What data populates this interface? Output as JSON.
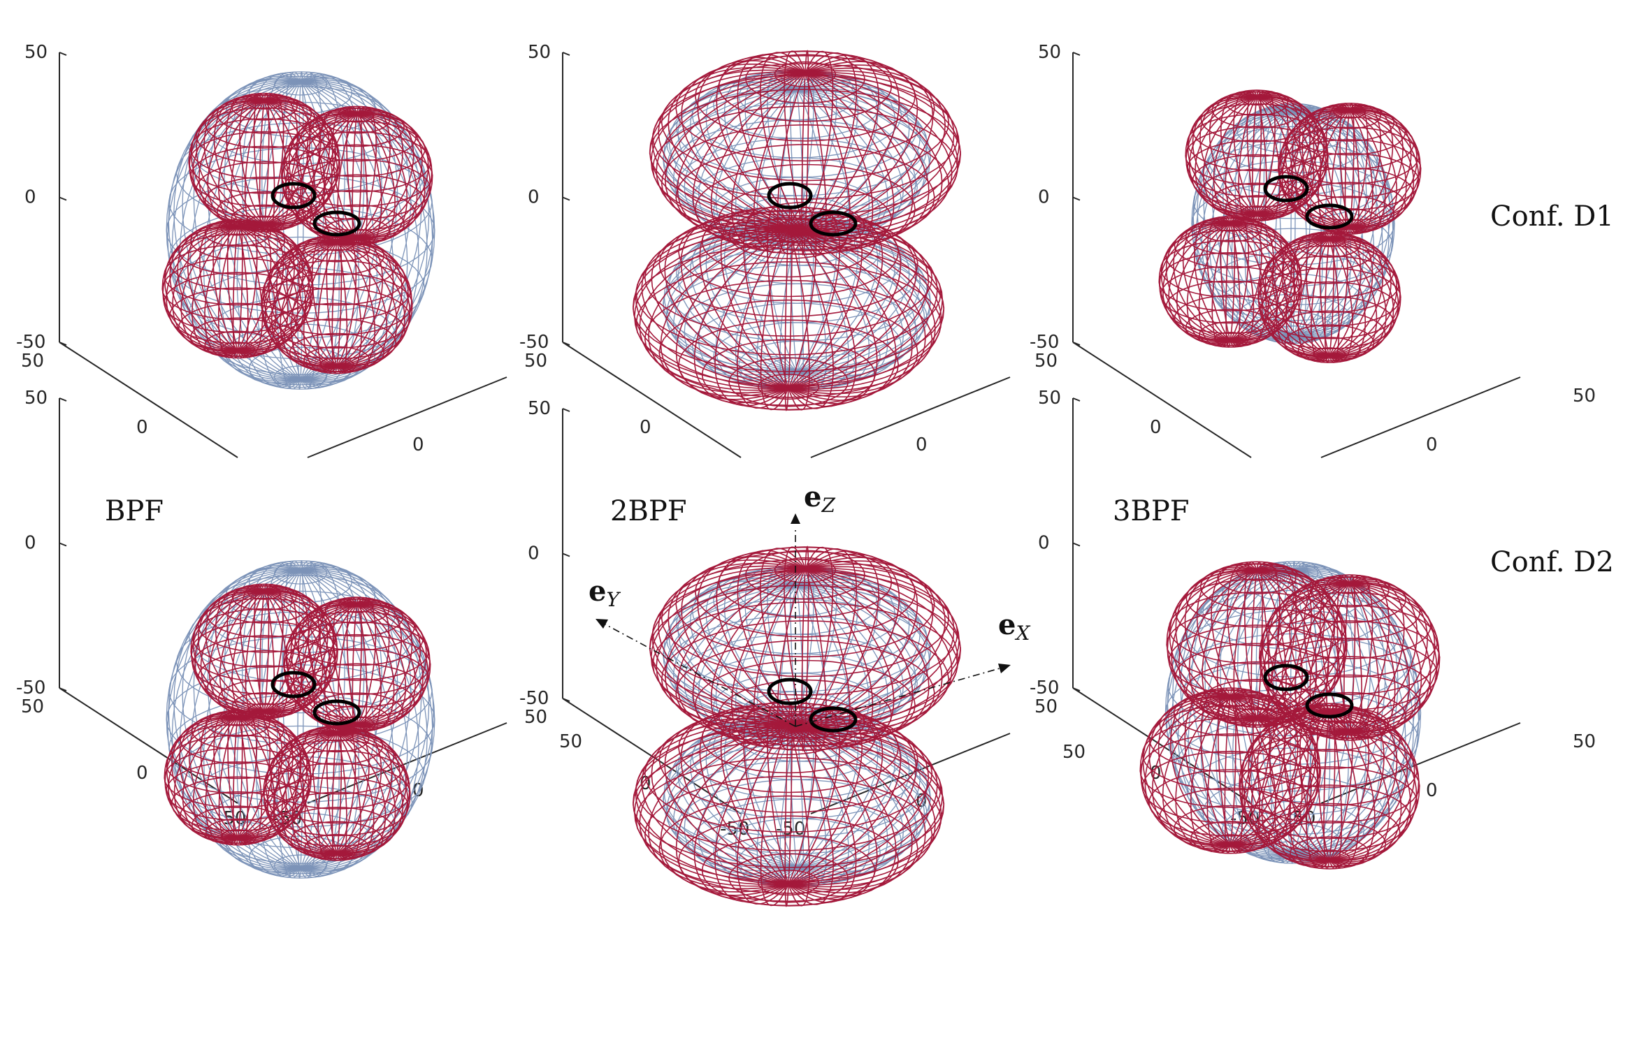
{
  "chart_data": {
    "type": "3d-directivity-pattern-grid",
    "column_labels": [
      "BPF",
      "2BPF",
      "3BPF"
    ],
    "row_labels": [
      "Conf. D1",
      "Conf. D2"
    ],
    "axes": {
      "z_ticks": [
        "50",
        "0",
        "-50"
      ],
      "y_ticks": [
        "50",
        "0"
      ],
      "x_ticks": [
        "0",
        "50"
      ],
      "bottom_row_extra_ticks": [
        "-50",
        "-50"
      ],
      "range": [
        -50,
        50
      ]
    },
    "basis_vectors": {
      "ez": {
        "symbol": "e",
        "sub": "Z"
      },
      "ey": {
        "symbol": "e",
        "sub": "Y"
      },
      "ex": {
        "symbol": "e",
        "sub": "X"
      }
    },
    "series_colors": {
      "blue": "#7c93b8",
      "red": "#a4193b",
      "rotor": "#000000"
    },
    "panels": [
      {
        "row": "Conf. D1",
        "column": "BPF",
        "pattern": "four-lobe",
        "red_radius": 0.72,
        "blue_radius": 0.82
      },
      {
        "row": "Conf. D1",
        "column": "2BPF",
        "pattern": "two-lobe",
        "red_radius": 0.95,
        "blue_radius": 0.85
      },
      {
        "row": "Conf. D1",
        "column": "3BPF",
        "pattern": "four-lobe",
        "red_radius": 0.68,
        "blue_radius": 0.62
      },
      {
        "row": "Conf. D2",
        "column": "BPF",
        "pattern": "four-lobe",
        "red_radius": 0.7,
        "blue_radius": 0.82
      },
      {
        "row": "Conf. D2",
        "column": "2BPF",
        "pattern": "two-lobe",
        "red_radius": 0.95,
        "blue_radius": 0.85
      },
      {
        "row": "Conf. D2",
        "column": "3BPF",
        "pattern": "four-lobe",
        "red_radius": 0.86,
        "blue_radius": 0.78
      }
    ]
  }
}
